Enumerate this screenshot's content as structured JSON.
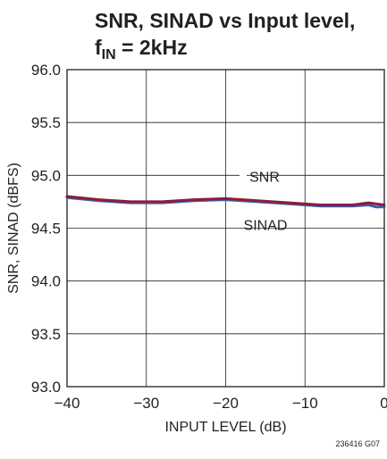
{
  "chart_data": {
    "type": "line",
    "title_line1": "SNR, SINAD vs Input level,",
    "title_line2_main": "f",
    "title_line2_sub": "IN",
    "title_line2_rest": " = 2kHz",
    "xlabel": "INPUT LEVEL (dB)",
    "ylabel": "SNR, SINAD (dBFS)",
    "xlim": [
      -40,
      0
    ],
    "ylim": [
      93.0,
      96.0
    ],
    "xticks": [
      -40,
      -30,
      -20,
      -10,
      0
    ],
    "xtick_labels": [
      "−40",
      "−30",
      "−20",
      "−10",
      "0"
    ],
    "yticks": [
      93.0,
      93.5,
      94.0,
      94.5,
      95.0,
      95.5,
      96.0
    ],
    "ytick_labels": [
      "93.0",
      "93.5",
      "94.0",
      "94.5",
      "95.0",
      "95.5",
      "96.0"
    ],
    "grid": true,
    "series": [
      {
        "name": "SNR",
        "color": "#8c1c3c",
        "x": [
          -40,
          -36,
          -32,
          -28,
          -24,
          -20,
          -16,
          -12,
          -8,
          -4,
          -2,
          -1,
          0
        ],
        "y": [
          94.8,
          94.77,
          94.75,
          94.75,
          94.77,
          94.78,
          94.76,
          94.74,
          94.72,
          94.72,
          94.74,
          94.73,
          94.72
        ]
      },
      {
        "name": "SINAD",
        "color": "#3a5fb0",
        "x": [
          -40,
          -36,
          -32,
          -28,
          -24,
          -20,
          -16,
          -12,
          -8,
          -4,
          -2,
          -1,
          0
        ],
        "y": [
          94.79,
          94.76,
          94.74,
          94.74,
          94.76,
          94.77,
          94.75,
          94.73,
          94.71,
          94.71,
          94.72,
          94.7,
          94.7
        ]
      }
    ],
    "annotations": [
      "SNR",
      "SINAD"
    ]
  },
  "figure_id": "236416 G07"
}
